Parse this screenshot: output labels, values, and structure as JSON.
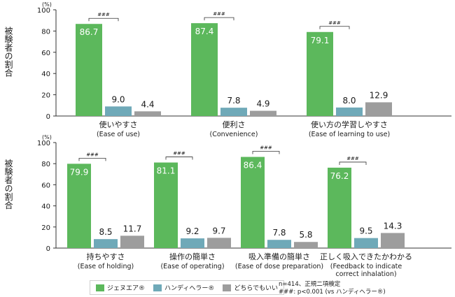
{
  "unit_label": "(%)",
  "y_label": "被験者の割合",
  "colors": {
    "inhaler1": "#5cb85c",
    "inhaler2": "#6fa9b8",
    "neutral": "#9d9d9d"
  },
  "significance_mark": "###",
  "legend": [
    {
      "name": "ジェヌエア®",
      "color": "#5cb85c"
    },
    {
      "name": "ハンディヘラー®",
      "color": "#6fa9b8"
    },
    {
      "name": "どちらでもいい",
      "color": "#9d9d9d"
    }
  ],
  "notes": [
    "n=414、正規二項検定",
    "###: p<0.001 (vs ハンディヘラー®)"
  ],
  "chart_data": [
    {
      "type": "bar",
      "ylim": [
        0,
        100
      ],
      "yticks": [
        0,
        20,
        40,
        60,
        80,
        100
      ],
      "categories": [
        {
          "label": "使いやすさ",
          "sublabel": "(Ease of use)"
        },
        {
          "label": "便利さ",
          "sublabel": "(Convenience)"
        },
        {
          "label": "使い方の学習しやすさ",
          "sublabel": "(Ease of learning to use)"
        }
      ],
      "series": [
        {
          "name": "ジェヌエア®",
          "values": [
            86.7,
            87.4,
            79.1
          ]
        },
        {
          "name": "ハンディヘラー®",
          "values": [
            9.0,
            7.8,
            8.0
          ]
        },
        {
          "name": "どちらでもいい",
          "values": [
            4.4,
            4.9,
            12.9
          ]
        }
      ],
      "value_labels": [
        [
          "86.7",
          "9.0",
          "4.4"
        ],
        [
          "87.4",
          "7.8",
          "4.9"
        ],
        [
          "79.1",
          "8.0",
          "12.9"
        ]
      ]
    },
    {
      "type": "bar",
      "ylim": [
        0,
        100
      ],
      "yticks": [
        0,
        20,
        40,
        60,
        80,
        100
      ],
      "categories": [
        {
          "label": "持ちやすさ",
          "sublabel": "(Ease of holding)"
        },
        {
          "label": "操作の簡単さ",
          "sublabel": "(Ease of operating)"
        },
        {
          "label": "吸入準備の簡単さ",
          "sublabel": "(Ease of dose preparation)"
        },
        {
          "label": "正しく吸入できたかわかる",
          "sublabel": "(Feedback to indicate correct inhalation)"
        }
      ],
      "series": [
        {
          "name": "ジェヌエア®",
          "values": [
            79.9,
            81.1,
            86.4,
            76.2
          ]
        },
        {
          "name": "ハンディヘラー®",
          "values": [
            8.5,
            9.2,
            7.8,
            9.5
          ]
        },
        {
          "name": "どちらでもいい",
          "values": [
            11.7,
            9.7,
            5.8,
            14.3
          ]
        }
      ],
      "value_labels": [
        [
          "79.9",
          "8.5",
          "11.7"
        ],
        [
          "81.1",
          "9.2",
          "9.7"
        ],
        [
          "86.4",
          "7.8",
          "5.8"
        ],
        [
          "76.2",
          "9.5",
          "14.3"
        ]
      ]
    }
  ]
}
